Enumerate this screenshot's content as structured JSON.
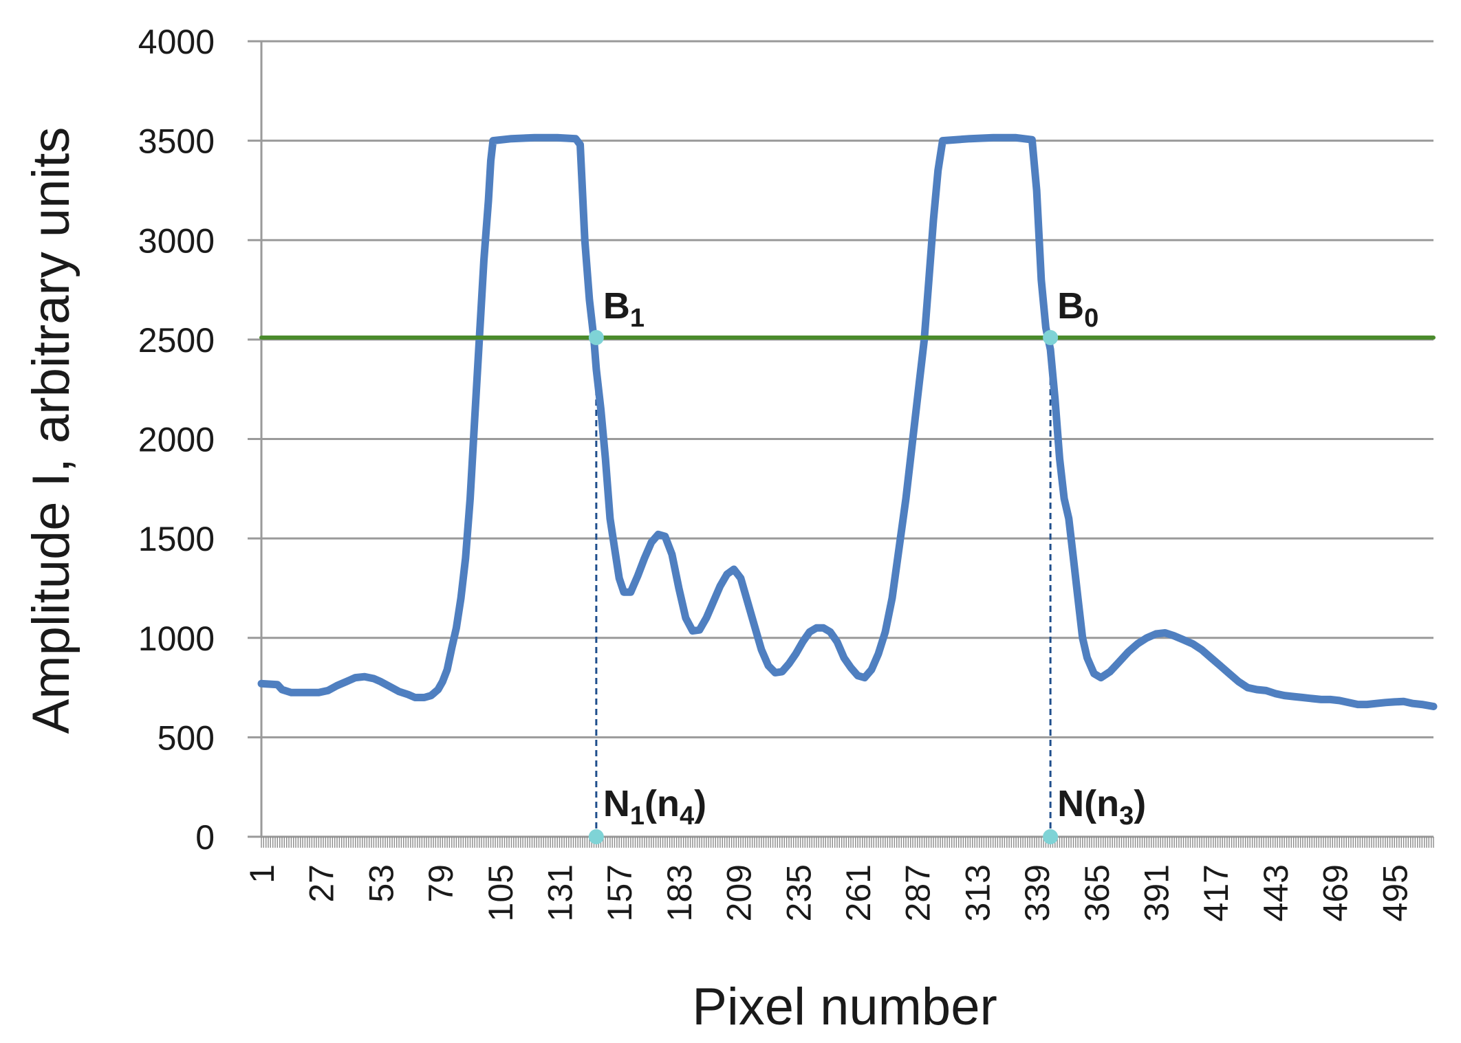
{
  "chart_data": {
    "type": "line",
    "title": "",
    "xlabel": "Pixel number",
    "ylabel": "Amplitude I, arbitrary units",
    "xlim": [
      1,
      512
    ],
    "ylim": [
      0,
      4000
    ],
    "yticks": [
      0,
      500,
      1000,
      1500,
      2000,
      2500,
      3000,
      3500,
      4000
    ],
    "xticks": [
      1,
      27,
      53,
      79,
      105,
      131,
      157,
      183,
      209,
      235,
      261,
      287,
      313,
      339,
      365,
      391,
      417,
      443,
      469,
      495
    ],
    "grid": true,
    "series": [
      {
        "color": "#4f7fc0",
        "points": [
          [
            1,
            770
          ],
          [
            8,
            765
          ],
          [
            10,
            740
          ],
          [
            14,
            725
          ],
          [
            20,
            725
          ],
          [
            26,
            725
          ],
          [
            30,
            735
          ],
          [
            34,
            760
          ],
          [
            38,
            780
          ],
          [
            42,
            800
          ],
          [
            46,
            805
          ],
          [
            50,
            795
          ],
          [
            53,
            780
          ],
          [
            57,
            755
          ],
          [
            61,
            730
          ],
          [
            65,
            715
          ],
          [
            68,
            700
          ],
          [
            72,
            700
          ],
          [
            75,
            710
          ],
          [
            78,
            740
          ],
          [
            80,
            780
          ],
          [
            82,
            840
          ],
          [
            84,
            950
          ],
          [
            86,
            1050
          ],
          [
            88,
            1200
          ],
          [
            90,
            1400
          ],
          [
            92,
            1700
          ],
          [
            94,
            2100
          ],
          [
            96,
            2500
          ],
          [
            98,
            2900
          ],
          [
            100,
            3200
          ],
          [
            101,
            3400
          ],
          [
            102,
            3500
          ],
          [
            110,
            3510
          ],
          [
            120,
            3515
          ],
          [
            130,
            3515
          ],
          [
            138,
            3510
          ],
          [
            140,
            3480
          ],
          [
            142,
            3000
          ],
          [
            144,
            2700
          ],
          [
            146,
            2500
          ],
          [
            147,
            2350
          ],
          [
            149,
            2150
          ],
          [
            151,
            1900
          ],
          [
            153,
            1600
          ],
          [
            155,
            1450
          ],
          [
            157,
            1300
          ],
          [
            159,
            1230
          ],
          [
            162,
            1230
          ],
          [
            165,
            1310
          ],
          [
            168,
            1400
          ],
          [
            171,
            1480
          ],
          [
            174,
            1520
          ],
          [
            177,
            1510
          ],
          [
            180,
            1420
          ],
          [
            183,
            1250
          ],
          [
            186,
            1100
          ],
          [
            189,
            1035
          ],
          [
            192,
            1040
          ],
          [
            195,
            1100
          ],
          [
            198,
            1180
          ],
          [
            201,
            1260
          ],
          [
            204,
            1320
          ],
          [
            207,
            1345
          ],
          [
            210,
            1300
          ],
          [
            213,
            1180
          ],
          [
            216,
            1060
          ],
          [
            219,
            940
          ],
          [
            222,
            860
          ],
          [
            225,
            825
          ],
          [
            228,
            830
          ],
          [
            231,
            870
          ],
          [
            234,
            920
          ],
          [
            237,
            980
          ],
          [
            240,
            1030
          ],
          [
            243,
            1050
          ],
          [
            246,
            1050
          ],
          [
            249,
            1030
          ],
          [
            252,
            980
          ],
          [
            255,
            900
          ],
          [
            258,
            850
          ],
          [
            261,
            810
          ],
          [
            264,
            800
          ],
          [
            267,
            840
          ],
          [
            270,
            920
          ],
          [
            273,
            1030
          ],
          [
            276,
            1200
          ],
          [
            279,
            1450
          ],
          [
            282,
            1700
          ],
          [
            285,
            2000
          ],
          [
            288,
            2300
          ],
          [
            290,
            2500
          ],
          [
            292,
            2800
          ],
          [
            294,
            3100
          ],
          [
            296,
            3350
          ],
          [
            298,
            3500
          ],
          [
            310,
            3510
          ],
          [
            320,
            3515
          ],
          [
            330,
            3515
          ],
          [
            337,
            3505
          ],
          [
            339,
            3250
          ],
          [
            341,
            2800
          ],
          [
            343,
            2560
          ],
          [
            345,
            2450
          ],
          [
            347,
            2200
          ],
          [
            349,
            1900
          ],
          [
            351,
            1700
          ],
          [
            353,
            1600
          ],
          [
            355,
            1400
          ],
          [
            357,
            1200
          ],
          [
            359,
            1000
          ],
          [
            361,
            900
          ],
          [
            364,
            820
          ],
          [
            367,
            800
          ],
          [
            371,
            830
          ],
          [
            375,
            880
          ],
          [
            379,
            930
          ],
          [
            383,
            970
          ],
          [
            387,
            1000
          ],
          [
            391,
            1020
          ],
          [
            395,
            1025
          ],
          [
            399,
            1010
          ],
          [
            403,
            990
          ],
          [
            407,
            970
          ],
          [
            411,
            940
          ],
          [
            415,
            900
          ],
          [
            419,
            860
          ],
          [
            423,
            820
          ],
          [
            427,
            780
          ],
          [
            431,
            750
          ],
          [
            435,
            740
          ],
          [
            439,
            735
          ],
          [
            443,
            720
          ],
          [
            447,
            710
          ],
          [
            451,
            705
          ],
          [
            455,
            700
          ],
          [
            459,
            695
          ],
          [
            463,
            690
          ],
          [
            467,
            690
          ],
          [
            471,
            685
          ],
          [
            475,
            675
          ],
          [
            479,
            665
          ],
          [
            483,
            665
          ],
          [
            487,
            670
          ],
          [
            491,
            675
          ],
          [
            495,
            678
          ],
          [
            499,
            680
          ],
          [
            503,
            670
          ],
          [
            507,
            665
          ],
          [
            512,
            655
          ]
        ]
      },
      {
        "color": "#4a8b2c",
        "points": [
          [
            1,
            2510
          ],
          [
            512,
            2510
          ]
        ]
      }
    ],
    "markers": [
      {
        "x": 147,
        "y": 2510,
        "label": "B",
        "sub": "1",
        "tail": ""
      },
      {
        "x": 345,
        "y": 2510,
        "label": "B",
        "sub": "0",
        "tail": ""
      },
      {
        "x": 147,
        "y": 0,
        "label": "N",
        "sub": "1",
        "tail": "(n",
        "sub2": "4",
        "tail2": ")"
      },
      {
        "x": 345,
        "y": 0,
        "label": "N(n",
        "sub": "3",
        "tail": ")"
      }
    ],
    "marker_color": "#7fd3d6",
    "guide_color": "#1f4e8c"
  }
}
